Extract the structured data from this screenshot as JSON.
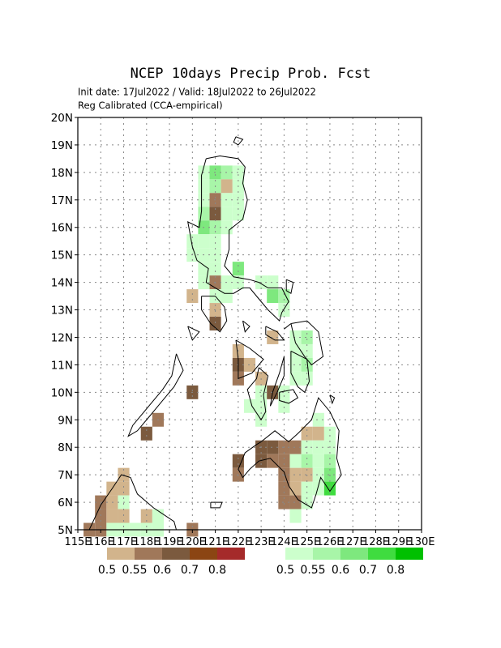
{
  "title": "NCEP 10days Precip Prob. Fcst",
  "subtitle": "Init date: 17Jul2022 / Valid: 18Jul2022 to 26Jul2022",
  "subtitle2": "Reg Calibrated (CCA-empirical)",
  "lat_labels": [
    "5N",
    "6N",
    "7N",
    "8N",
    "9N",
    "10N",
    "11N",
    "12N",
    "13N",
    "14N",
    "15N",
    "16N",
    "17N",
    "18N",
    "19N",
    "20N"
  ],
  "lon_labels": [
    "115E",
    "116E",
    "117E",
    "118E",
    "119E",
    "120E",
    "121E",
    "122E",
    "123E",
    "124E",
    "125E",
    "126E",
    "127E",
    "128E",
    "129E",
    "130E"
  ],
  "legend_dry": {
    "labels": [
      "0.5",
      "0.55",
      "0.6",
      "0.7",
      "0.8"
    ],
    "colors": [
      "#d2b48c",
      "#a0785a",
      "#7b5a3e",
      "#8b4513",
      "#a52a2a"
    ]
  },
  "legend_wet": {
    "labels": [
      "0.5",
      "0.55",
      "0.6",
      "0.7",
      "0.8"
    ],
    "colors": [
      "#ccffcc",
      "#a8f5a8",
      "#7ee87e",
      "#3fdc3f",
      "#00c000"
    ]
  },
  "grid_cells": [
    {
      "lon": 120.5,
      "lat": 18.0,
      "cls": "w1"
    },
    {
      "lon": 121.0,
      "lat": 18.0,
      "cls": "w3"
    },
    {
      "lon": 121.5,
      "lat": 18.0,
      "cls": "w2"
    },
    {
      "lon": 122.0,
      "lat": 18.0,
      "cls": "w1"
    },
    {
      "lon": 120.5,
      "lat": 17.5,
      "cls": "w1"
    },
    {
      "lon": 121.0,
      "lat": 17.5,
      "cls": "w2"
    },
    {
      "lon": 121.5,
      "lat": 17.5,
      "cls": "d1"
    },
    {
      "lon": 122.0,
      "lat": 17.5,
      "cls": "w1"
    },
    {
      "lon": 120.5,
      "lat": 17.0,
      "cls": "w1"
    },
    {
      "lon": 121.0,
      "lat": 17.0,
      "cls": "d2"
    },
    {
      "lon": 121.5,
      "lat": 17.0,
      "cls": "w1"
    },
    {
      "lon": 122.0,
      "lat": 17.0,
      "cls": "w1"
    },
    {
      "lon": 120.5,
      "lat": 16.5,
      "cls": "w2"
    },
    {
      "lon": 121.0,
      "lat": 16.5,
      "cls": "d3"
    },
    {
      "lon": 121.5,
      "lat": 16.5,
      "cls": "w1"
    },
    {
      "lon": 122.0,
      "lat": 16.5,
      "cls": "w1"
    },
    {
      "lon": 120.5,
      "lat": 16.0,
      "cls": "w3"
    },
    {
      "lon": 121.0,
      "lat": 16.0,
      "cls": "w2"
    },
    {
      "lon": 121.5,
      "lat": 16.0,
      "cls": "w1"
    },
    {
      "lon": 120.0,
      "lat": 15.5,
      "cls": "w1"
    },
    {
      "lon": 120.5,
      "lat": 15.5,
      "cls": "w1"
    },
    {
      "lon": 121.0,
      "lat": 15.5,
      "cls": "w1"
    },
    {
      "lon": 120.0,
      "lat": 15.0,
      "cls": "w1"
    },
    {
      "lon": 120.5,
      "lat": 15.0,
      "cls": "w1"
    },
    {
      "lon": 121.0,
      "lat": 15.0,
      "cls": "w1"
    },
    {
      "lon": 122.0,
      "lat": 14.5,
      "cls": "w3"
    },
    {
      "lon": 120.5,
      "lat": 14.5,
      "cls": "w1"
    },
    {
      "lon": 121.0,
      "lat": 14.5,
      "cls": "w1"
    },
    {
      "lon": 120.5,
      "lat": 14.0,
      "cls": "w1"
    },
    {
      "lon": 121.0,
      "lat": 14.0,
      "cls": "d2"
    },
    {
      "lon": 121.5,
      "lat": 14.0,
      "cls": "w1"
    },
    {
      "lon": 122.0,
      "lat": 14.0,
      "cls": "w1"
    },
    {
      "lon": 123.0,
      "lat": 14.0,
      "cls": "w1"
    },
    {
      "lon": 123.5,
      "lat": 14.0,
      "cls": "w1"
    },
    {
      "lon": 120.0,
      "lat": 13.5,
      "cls": "d1"
    },
    {
      "lon": 121.0,
      "lat": 13.5,
      "cls": "w1"
    },
    {
      "lon": 121.5,
      "lat": 13.5,
      "cls": "w1"
    },
    {
      "lon": 123.5,
      "lat": 13.5,
      "cls": "w3"
    },
    {
      "lon": 124.0,
      "lat": 13.5,
      "cls": "w2"
    },
    {
      "lon": 121.0,
      "lat": 13.0,
      "cls": "d1"
    },
    {
      "lon": 124.0,
      "lat": 13.0,
      "cls": "w1"
    },
    {
      "lon": 121.0,
      "lat": 12.5,
      "cls": "d3"
    },
    {
      "lon": 124.5,
      "lat": 12.0,
      "cls": "w1"
    },
    {
      "lon": 125.0,
      "lat": 12.0,
      "cls": "w2"
    },
    {
      "lon": 123.5,
      "lat": 12.0,
      "cls": "d1"
    },
    {
      "lon": 122.0,
      "lat": 11.5,
      "cls": "d1"
    },
    {
      "lon": 124.5,
      "lat": 11.5,
      "cls": "w1"
    },
    {
      "lon": 125.0,
      "lat": 11.5,
      "cls": "w1"
    },
    {
      "lon": 122.0,
      "lat": 11.0,
      "cls": "d3"
    },
    {
      "lon": 122.5,
      "lat": 11.0,
      "cls": "d1"
    },
    {
      "lon": 124.5,
      "lat": 11.0,
      "cls": "w1"
    },
    {
      "lon": 125.0,
      "lat": 11.0,
      "cls": "w2"
    },
    {
      "lon": 122.0,
      "lat": 10.5,
      "cls": "d2"
    },
    {
      "lon": 123.0,
      "lat": 10.5,
      "cls": "d1"
    },
    {
      "lon": 124.5,
      "lat": 10.5,
      "cls": "w1"
    },
    {
      "lon": 125.0,
      "lat": 10.5,
      "cls": "w1"
    },
    {
      "lon": 120.0,
      "lat": 10.0,
      "cls": "d3"
    },
    {
      "lon": 123.0,
      "lat": 10.0,
      "cls": "w1"
    },
    {
      "lon": 123.5,
      "lat": 10.0,
      "cls": "d3"
    },
    {
      "lon": 124.0,
      "lat": 10.0,
      "cls": "w1"
    },
    {
      "lon": 122.5,
      "lat": 9.5,
      "cls": "w1"
    },
    {
      "lon": 123.0,
      "lat": 9.5,
      "cls": "w1"
    },
    {
      "lon": 124.0,
      "lat": 9.5,
      "cls": "w1"
    },
    {
      "lon": 118.5,
      "lat": 9.0,
      "cls": "d2"
    },
    {
      "lon": 123.0,
      "lat": 9.0,
      "cls": "w1"
    },
    {
      "lon": 125.5,
      "lat": 9.0,
      "cls": "w1"
    },
    {
      "lon": 118.0,
      "lat": 8.5,
      "cls": "d3"
    },
    {
      "lon": 125.0,
      "lat": 8.5,
      "cls": "d1"
    },
    {
      "lon": 125.5,
      "lat": 8.5,
      "cls": "d1"
    },
    {
      "lon": 126.0,
      "lat": 8.5,
      "cls": "w1"
    },
    {
      "lon": 123.0,
      "lat": 8.0,
      "cls": "d3"
    },
    {
      "lon": 123.5,
      "lat": 8.0,
      "cls": "d3"
    },
    {
      "lon": 124.0,
      "lat": 8.0,
      "cls": "d2"
    },
    {
      "lon": 124.5,
      "lat": 8.0,
      "cls": "d2"
    },
    {
      "lon": 125.0,
      "lat": 8.0,
      "cls": "w1"
    },
    {
      "lon": 125.5,
      "lat": 8.0,
      "cls": "w1"
    },
    {
      "lon": 126.0,
      "lat": 8.0,
      "cls": "w1"
    },
    {
      "lon": 122.0,
      "lat": 7.5,
      "cls": "d3"
    },
    {
      "lon": 123.0,
      "lat": 7.5,
      "cls": "d3"
    },
    {
      "lon": 123.5,
      "lat": 7.5,
      "cls": "d2"
    },
    {
      "lon": 124.0,
      "lat": 7.5,
      "cls": "d2"
    },
    {
      "lon": 124.5,
      "lat": 7.5,
      "cls": "w1"
    },
    {
      "lon": 125.0,
      "lat": 7.5,
      "cls": "w2"
    },
    {
      "lon": 125.5,
      "lat": 7.5,
      "cls": "w1"
    },
    {
      "lon": 126.0,
      "lat": 7.5,
      "cls": "w2"
    },
    {
      "lon": 117.0,
      "lat": 7.0,
      "cls": "d1"
    },
    {
      "lon": 122.0,
      "lat": 7.0,
      "cls": "d2"
    },
    {
      "lon": 124.0,
      "lat": 7.0,
      "cls": "d2"
    },
    {
      "lon": 124.5,
      "lat": 7.0,
      "cls": "d1"
    },
    {
      "lon": 125.0,
      "lat": 7.0,
      "cls": "d1"
    },
    {
      "lon": 125.5,
      "lat": 7.0,
      "cls": "w1"
    },
    {
      "lon": 126.0,
      "lat": 7.0,
      "cls": "w3"
    },
    {
      "lon": 116.5,
      "lat": 6.5,
      "cls": "d1"
    },
    {
      "lon": 117.0,
      "lat": 6.5,
      "cls": "d1"
    },
    {
      "lon": 124.0,
      "lat": 6.5,
      "cls": "d2"
    },
    {
      "lon": 124.5,
      "lat": 6.5,
      "cls": "d1"
    },
    {
      "lon": 125.0,
      "lat": 6.5,
      "cls": "w1"
    },
    {
      "lon": 125.5,
      "lat": 6.5,
      "cls": "w1"
    },
    {
      "lon": 126.0,
      "lat": 6.5,
      "cls": "w4"
    },
    {
      "lon": 116.0,
      "lat": 6.0,
      "cls": "d2"
    },
    {
      "lon": 116.5,
      "lat": 6.0,
      "cls": "d1"
    },
    {
      "lon": 117.0,
      "lat": 6.0,
      "cls": "w1"
    },
    {
      "lon": 124.0,
      "lat": 6.0,
      "cls": "d2"
    },
    {
      "lon": 124.5,
      "lat": 6.0,
      "cls": "d2"
    },
    {
      "lon": 125.0,
      "lat": 6.0,
      "cls": "w1"
    },
    {
      "lon": 116.0,
      "lat": 5.5,
      "cls": "d2"
    },
    {
      "lon": 116.5,
      "lat": 5.5,
      "cls": "d1"
    },
    {
      "lon": 117.0,
      "lat": 5.5,
      "cls": "d1"
    },
    {
      "lon": 118.0,
      "lat": 5.5,
      "cls": "d1"
    },
    {
      "lon": 118.5,
      "lat": 5.5,
      "cls": "w1"
    },
    {
      "lon": 124.5,
      "lat": 5.5,
      "cls": "w1"
    },
    {
      "lon": 115.5,
      "lat": 5.0,
      "cls": "d2"
    },
    {
      "lon": 116.0,
      "lat": 5.0,
      "cls": "d2"
    },
    {
      "lon": 116.5,
      "lat": 5.0,
      "cls": "w1"
    },
    {
      "lon": 117.0,
      "lat": 5.0,
      "cls": "w1"
    },
    {
      "lon": 117.5,
      "lat": 5.0,
      "cls": "w1"
    },
    {
      "lon": 118.0,
      "lat": 5.0,
      "cls": "w1"
    },
    {
      "lon": 118.5,
      "lat": 5.0,
      "cls": "w1"
    },
    {
      "lon": 120.0,
      "lat": 5.0,
      "cls": "d2"
    }
  ],
  "coastlines": [
    {
      "name": "luzon",
      "pts": [
        [
          120.6,
          18.5
        ],
        [
          121.2,
          18.6
        ],
        [
          122.0,
          18.5
        ],
        [
          122.3,
          18.2
        ],
        [
          122.2,
          17.6
        ],
        [
          122.4,
          17.0
        ],
        [
          122.2,
          16.3
        ],
        [
          121.6,
          15.9
        ],
        [
          121.6,
          15.2
        ],
        [
          121.4,
          14.6
        ],
        [
          121.8,
          14.2
        ],
        [
          122.5,
          14.1
        ],
        [
          122.9,
          14.0
        ],
        [
          123.3,
          13.8
        ],
        [
          123.9,
          13.8
        ],
        [
          124.2,
          13.3
        ],
        [
          123.9,
          12.9
        ],
        [
          123.8,
          12.6
        ],
        [
          123.3,
          13.0
        ],
        [
          122.9,
          13.4
        ],
        [
          122.5,
          13.8
        ],
        [
          122.2,
          13.8
        ],
        [
          121.8,
          13.6
        ],
        [
          121.4,
          13.6
        ],
        [
          121.0,
          13.8
        ],
        [
          120.6,
          14.0
        ],
        [
          120.7,
          14.5
        ],
        [
          120.2,
          14.8
        ],
        [
          120.0,
          15.3
        ],
        [
          119.8,
          16.2
        ],
        [
          120.3,
          16.0
        ],
        [
          120.4,
          16.6
        ],
        [
          120.4,
          17.3
        ],
        [
          120.4,
          17.9
        ],
        [
          120.6,
          18.5
        ]
      ]
    },
    {
      "name": "mindoro",
      "pts": [
        [
          120.4,
          13.5
        ],
        [
          121.0,
          13.5
        ],
        [
          121.4,
          13.1
        ],
        [
          121.5,
          12.6
        ],
        [
          121.2,
          12.2
        ],
        [
          120.8,
          12.5
        ],
        [
          120.4,
          13.0
        ],
        [
          120.4,
          13.5
        ]
      ]
    },
    {
      "name": "palawan",
      "pts": [
        [
          119.3,
          11.4
        ],
        [
          119.6,
          10.8
        ],
        [
          119.2,
          10.2
        ],
        [
          118.8,
          9.8
        ],
        [
          118.2,
          9.2
        ],
        [
          117.6,
          8.6
        ],
        [
          117.2,
          8.4
        ],
        [
          117.4,
          8.8
        ],
        [
          118.0,
          9.4
        ],
        [
          118.7,
          10.1
        ],
        [
          119.1,
          10.6
        ],
        [
          119.3,
          11.4
        ]
      ]
    },
    {
      "name": "panay",
      "pts": [
        [
          121.9,
          11.9
        ],
        [
          122.5,
          11.6
        ],
        [
          123.1,
          11.2
        ],
        [
          122.6,
          10.7
        ],
        [
          122.0,
          10.5
        ],
        [
          122.0,
          11.2
        ],
        [
          121.9,
          11.9
        ]
      ]
    },
    {
      "name": "negros",
      "pts": [
        [
          122.9,
          10.9
        ],
        [
          123.3,
          10.6
        ],
        [
          123.1,
          9.9
        ],
        [
          123.2,
          9.3
        ],
        [
          123.0,
          9.0
        ],
        [
          122.6,
          9.5
        ],
        [
          122.4,
          10.1
        ],
        [
          122.8,
          10.5
        ],
        [
          122.9,
          10.9
        ]
      ]
    },
    {
      "name": "cebu",
      "pts": [
        [
          124.0,
          11.3
        ],
        [
          124.0,
          10.6
        ],
        [
          123.7,
          10.0
        ],
        [
          123.4,
          9.5
        ],
        [
          123.5,
          10.0
        ],
        [
          123.8,
          10.7
        ],
        [
          124.0,
          11.3
        ]
      ]
    },
    {
      "name": "bohol",
      "pts": [
        [
          123.8,
          10.0
        ],
        [
          124.4,
          10.1
        ],
        [
          124.6,
          9.8
        ],
        [
          124.2,
          9.6
        ],
        [
          123.8,
          9.7
        ],
        [
          123.8,
          10.0
        ]
      ]
    },
    {
      "name": "samar",
      "pts": [
        [
          124.3,
          12.5
        ],
        [
          125.0,
          12.6
        ],
        [
          125.5,
          12.2
        ],
        [
          125.7,
          11.3
        ],
        [
          125.2,
          11.0
        ],
        [
          124.9,
          11.3
        ],
        [
          124.5,
          11.8
        ],
        [
          124.3,
          12.5
        ]
      ]
    },
    {
      "name": "leyte",
      "pts": [
        [
          124.3,
          11.5
        ],
        [
          125.0,
          11.2
        ],
        [
          125.1,
          10.4
        ],
        [
          124.9,
          10.0
        ],
        [
          124.6,
          10.2
        ],
        [
          124.3,
          10.7
        ],
        [
          124.3,
          11.5
        ]
      ]
    },
    {
      "name": "masbate",
      "pts": [
        [
          123.2,
          12.4
        ],
        [
          123.7,
          12.2
        ],
        [
          124.0,
          11.9
        ],
        [
          123.6,
          11.9
        ],
        [
          123.2,
          12.1
        ],
        [
          123.2,
          12.4
        ]
      ]
    },
    {
      "name": "mindanao",
      "pts": [
        [
          123.0,
          8.2
        ],
        [
          123.6,
          8.6
        ],
        [
          124.2,
          8.2
        ],
        [
          124.6,
          8.5
        ],
        [
          125.2,
          9.0
        ],
        [
          125.5,
          9.8
        ],
        [
          126.0,
          9.3
        ],
        [
          126.4,
          8.6
        ],
        [
          126.3,
          7.6
        ],
        [
          126.5,
          7.0
        ],
        [
          126.0,
          6.4
        ],
        [
          125.6,
          6.9
        ],
        [
          125.4,
          6.3
        ],
        [
          125.2,
          5.8
        ],
        [
          124.6,
          6.1
        ],
        [
          124.2,
          6.6
        ],
        [
          124.0,
          7.1
        ],
        [
          123.4,
          7.6
        ],
        [
          122.9,
          7.5
        ],
        [
          122.5,
          7.2
        ],
        [
          122.2,
          6.9
        ],
        [
          122.0,
          7.2
        ],
        [
          122.3,
          7.8
        ],
        [
          122.8,
          8.1
        ],
        [
          123.0,
          8.2
        ]
      ]
    },
    {
      "name": "borneo_n",
      "pts": [
        [
          115.5,
          5.0
        ],
        [
          116.0,
          5.9
        ],
        [
          116.5,
          6.5
        ],
        [
          116.9,
          7.0
        ],
        [
          117.3,
          6.9
        ],
        [
          117.6,
          6.3
        ],
        [
          118.3,
          5.8
        ],
        [
          119.2,
          5.3
        ],
        [
          119.3,
          5.0
        ]
      ]
    },
    {
      "name": "sulu",
      "pts": [
        [
          120.8,
          6.0
        ],
        [
          121.3,
          6.0
        ],
        [
          121.2,
          5.8
        ],
        [
          120.8,
          5.8
        ],
        [
          120.8,
          6.0
        ]
      ]
    },
    {
      "name": "babuyan",
      "pts": [
        [
          121.9,
          19.3
        ],
        [
          122.2,
          19.2
        ],
        [
          122.0,
          19.0
        ],
        [
          121.8,
          19.1
        ],
        [
          121.9,
          19.3
        ]
      ]
    },
    {
      "name": "catanduanes",
      "pts": [
        [
          124.1,
          14.1
        ],
        [
          124.4,
          14.0
        ],
        [
          124.3,
          13.6
        ],
        [
          124.1,
          13.7
        ],
        [
          124.1,
          14.1
        ]
      ]
    },
    {
      "name": "samar_n",
      "pts": [
        [
          124.3,
          12.5
        ],
        [
          124.0,
          12.3
        ]
      ]
    },
    {
      "name": "siargao",
      "pts": [
        [
          126.0,
          9.9
        ],
        [
          126.2,
          9.8
        ],
        [
          126.1,
          9.6
        ],
        [
          126.0,
          9.9
        ]
      ]
    },
    {
      "name": "busuanga",
      "pts": [
        [
          119.8,
          12.4
        ],
        [
          120.3,
          12.2
        ],
        [
          120.0,
          11.9
        ],
        [
          119.8,
          12.4
        ]
      ]
    },
    {
      "name": "romblon",
      "pts": [
        [
          122.2,
          12.6
        ],
        [
          122.5,
          12.4
        ],
        [
          122.3,
          12.2
        ],
        [
          122.2,
          12.6
        ]
      ]
    }
  ]
}
